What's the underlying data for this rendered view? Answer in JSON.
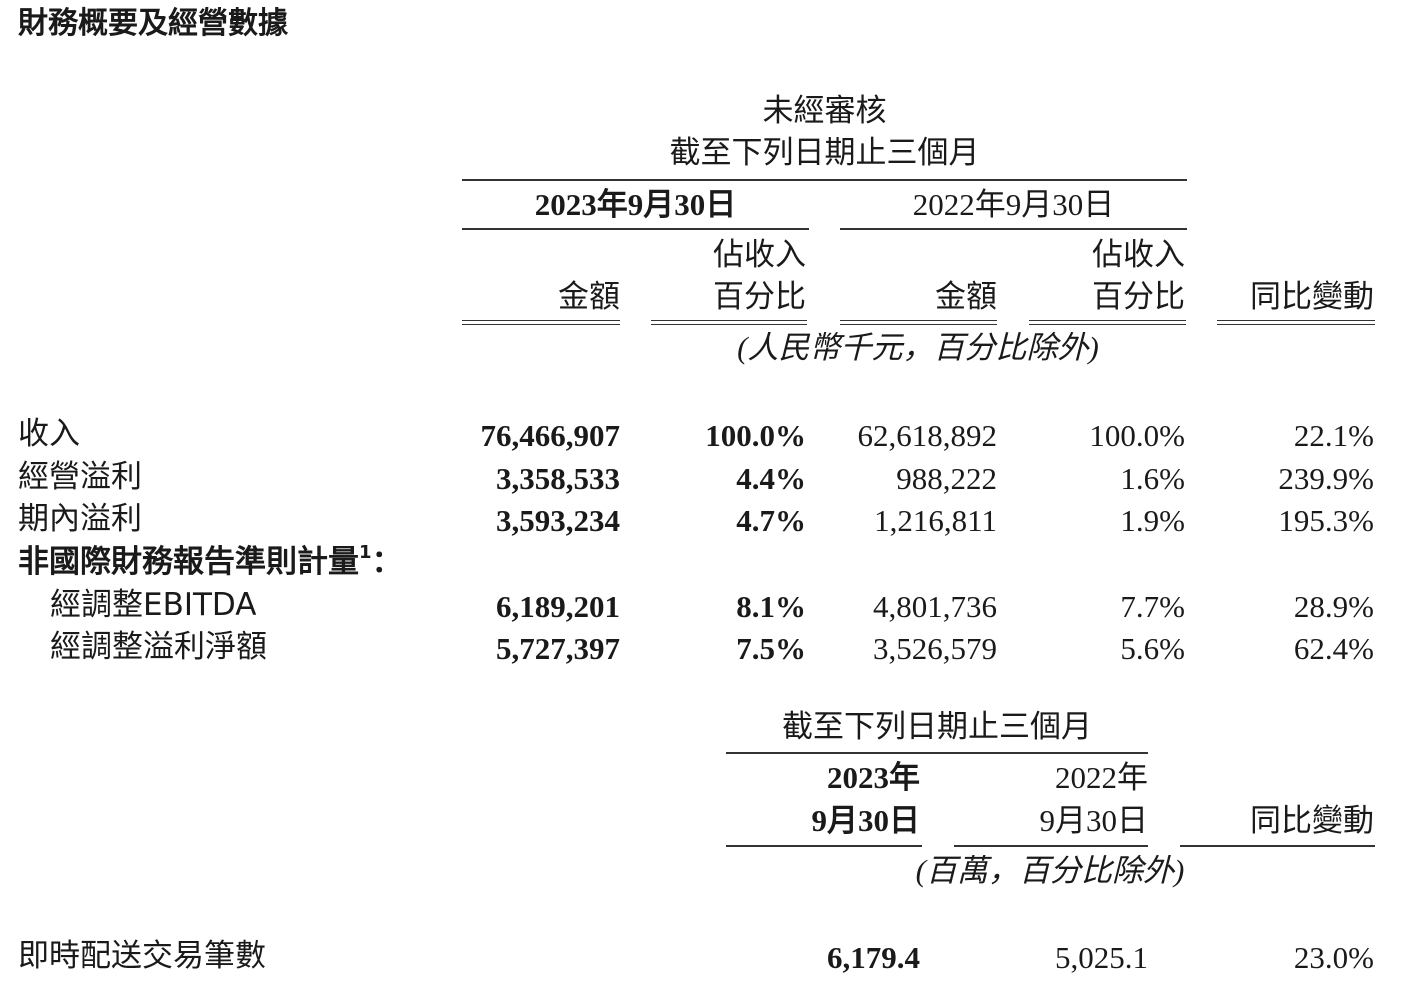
{
  "title": "財務概要及經營數據",
  "table1": {
    "header_top": "未經審核",
    "header_period": "截至下列日期止三個月",
    "date_2023": "2023年9月30日",
    "date_2022": "2022年9月30日",
    "col_amount": "金額",
    "col_pct_line1": "佔收入",
    "col_pct_line2": "百分比",
    "col_yoy": "同比變動",
    "unit_note": "(人民幣千元，百分比除外)",
    "rows": [
      {
        "label": "收入",
        "a2023": "76,466,907",
        "p2023": "100.0%",
        "a2022": "62,618,892",
        "p2022": "100.0%",
        "yoy": "22.1%",
        "indent": false
      },
      {
        "label": "經營溢利",
        "a2023": "3,358,533",
        "p2023": "4.4%",
        "a2022": "988,222",
        "p2022": "1.6%",
        "yoy": "239.9%",
        "indent": false
      },
      {
        "label": "期內溢利",
        "a2023": "3,593,234",
        "p2023": "4.7%",
        "a2022": "1,216,811",
        "p2022": "1.9%",
        "yoy": "195.3%",
        "indent": false
      },
      {
        "label": "經調整EBITDA",
        "a2023": "6,189,201",
        "p2023": "8.1%",
        "a2022": "4,801,736",
        "p2022": "7.7%",
        "yoy": "28.9%",
        "indent": true
      },
      {
        "label": "經調整溢利淨額",
        "a2023": "5,727,397",
        "p2023": "7.5%",
        "a2022": "3,526,579",
        "p2022": "5.6%",
        "yoy": "62.4%",
        "indent": true
      }
    ],
    "section_label": "非國際財務報告準則計量",
    "section_footnote": "1",
    "section_colon": "："
  },
  "table2": {
    "header_period": "截至下列日期止三個月",
    "year_2023": "2023年",
    "day_2023": "9月30日",
    "year_2022": "2022年",
    "day_2022": "9月30日",
    "col_yoy": "同比變動",
    "unit_note": "(百萬，百分比除外)",
    "row": {
      "label": "即時配送交易筆數",
      "v2023": "6,179.4",
      "v2022": "5,025.1",
      "yoy": "23.0%"
    }
  }
}
